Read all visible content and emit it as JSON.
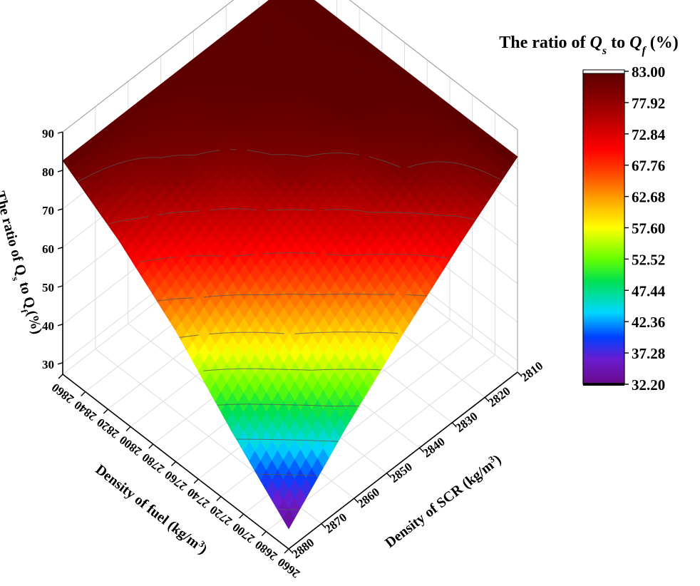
{
  "chart_data": {
    "type": "surface3d",
    "title": "",
    "x_axis": {
      "label": "Density of fuel (kg/m3)",
      "label_main": "Density of fuel (kg/m",
      "label_sup": "3",
      "label_tail": ")",
      "ticks": [
        "2660",
        "2680",
        "2700",
        "2720",
        "2740",
        "2760",
        "2780",
        "2800",
        "2820",
        "2840",
        "2860"
      ],
      "range": [
        2660,
        2860
      ]
    },
    "y_axis": {
      "label": "Density of SCR (kg/m3)",
      "label_main": "Density of SCR (kg/m",
      "label_sup": "3",
      "label_tail": ")",
      "ticks": [
        "2810",
        "2820",
        "2830",
        "2840",
        "2850",
        "2860",
        "2870",
        "2880"
      ],
      "range": [
        2810,
        2880
      ]
    },
    "z_axis": {
      "label": "The ratio of Qs to Qf (%)",
      "label_parts": [
        "The ratio of Q",
        "s",
        " to Q",
        "f",
        "(%)"
      ],
      "ticks": [
        "30",
        "40",
        "50",
        "60",
        "70",
        "80",
        "90"
      ],
      "range": [
        27,
        90
      ]
    },
    "colorbar": {
      "title_parts": [
        "The ratio of ",
        "Q",
        "s",
        " to ",
        "Q",
        "f",
        " (%)"
      ],
      "ticks": [
        "83.00",
        "77.92",
        "72.84",
        "67.76",
        "62.68",
        "57.60",
        "52.52",
        "47.44",
        "42.36",
        "37.28",
        "32.20"
      ],
      "min": 32.2,
      "max": 83.0
    },
    "surface_corners": {
      "fuel_2860_scr_2810": 82.9,
      "fuel_2660_scr_2810": 83.0,
      "fuel_2860_scr_2880": 82.5,
      "fuel_2660_scr_2880": 32.2
    },
    "surface_samples": {
      "fuel": [
        2660,
        2710,
        2760,
        2810,
        2860
      ],
      "scr": [
        2810,
        2827.5,
        2845,
        2862.5,
        2880
      ],
      "z": [
        [
          83.0,
          72.0,
          60.0,
          47.0,
          32.2
        ],
        [
          82.9,
          80.0,
          71.0,
          60.0,
          46.0
        ],
        [
          82.9,
          82.5,
          79.0,
          71.0,
          61.0
        ],
        [
          82.9,
          82.8,
          82.0,
          79.0,
          73.0
        ],
        [
          82.9,
          82.8,
          82.7,
          82.6,
          82.5
        ]
      ]
    },
    "grid": true,
    "legend": "right"
  }
}
